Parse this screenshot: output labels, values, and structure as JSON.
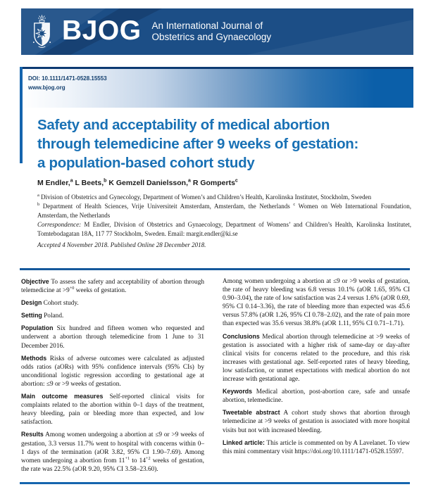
{
  "colors": {
    "band_navy": "#1c4e86",
    "rule_blue": "#1565ae",
    "rule_blue2": "#15599c",
    "title_blue": "#1971b5",
    "doi_border": "#0c3a72",
    "doi_grad_end": "#0b5fa9",
    "doi_text": "#14406f"
  },
  "header": {
    "logo": "BJOG",
    "tagline_line1": "An International Journal of",
    "tagline_line2": "Obstetrics and Gynaecology",
    "crest_icon": "bjog-crest",
    "doi": "DOI: 10.1111/1471-0528.15553",
    "website": "www.bjog.org"
  },
  "article": {
    "title_lines": [
      "Safety and acceptability of medical abortion",
      "through telemedicine after 9 weeks of gestation:",
      "a population-based cohort study"
    ],
    "authors": [
      {
        "segments": [
          {
            "t": "M Endler,"
          },
          {
            "sup": "a"
          },
          {
            "t": " L Beets,"
          },
          {
            "sup": "b"
          },
          {
            "t": " K Gemzell Danielsson,"
          },
          {
            "sup": "a"
          },
          {
            "t": " R Gomperts"
          },
          {
            "sup": "c"
          }
        ]
      }
    ],
    "affiliations": [
      {
        "segments": [
          {
            "sup": "a"
          },
          {
            "t": " Division of Obstetrics and Gynecology, Department of Women’s and Children’s Health, Karolinska Institutet, Stockholm, Sweden"
          }
        ]
      },
      {
        "segments": [
          {
            "sup": "b"
          },
          {
            "t": " Department of Health Sciences, Vrije Universiteit Amsterdam, Amsterdam, the Netherlands "
          },
          {
            "sup": "c"
          },
          {
            "t": " Women on Web International Foundation, Amsterdam, the Netherlands"
          }
        ]
      },
      {
        "segments": [
          {
            "i": "Correspondence:"
          },
          {
            "t": " M Endler, Division of Obstetrics and Gynaecology, Department of Womens’ and Children’s Health, Karolinska Institutet, Tomtebodagatan 18A, 117 77 Stockholm, Sweden. Email: margit.endler@ki.se"
          }
        ]
      }
    ],
    "accepted_note": "Accepted 4 November 2018. Published Online 28 December 2018."
  },
  "abstract": {
    "left": [
      {
        "label": "Objective",
        "segments": [
          {
            "t": "To assess the safety and acceptability of abortion through telemedicine at >9"
          },
          {
            "sup": "+0"
          },
          {
            "t": " weeks of gestation."
          }
        ]
      },
      {
        "label": "Design",
        "segments": [
          {
            "t": "Cohort study."
          }
        ]
      },
      {
        "label": "Setting",
        "segments": [
          {
            "t": "Poland."
          }
        ]
      },
      {
        "label": "Population",
        "segments": [
          {
            "t": "Six hundred and fifteen women who requested and underwent a abortion through telemedicine from 1 June to 31 December 2016."
          }
        ]
      },
      {
        "label": "Methods",
        "segments": [
          {
            "t": "Risks of adverse outcomes were calculated as adjusted odds ratios (aORs) with 95% confidence intervals (95% CIs) by unconditional logistic regression according to gestational age at abortion: ≤9 or >9 weeks of gestation."
          }
        ]
      },
      {
        "label": "Main outcome measures",
        "segments": [
          {
            "t": "Self-reported clinical visits for complaints related to the abortion within 0–1 days of the treatment, heavy bleeding, pain or bleeding more than expected, and low satisfaction."
          }
        ]
      },
      {
        "label": "Results",
        "segments": [
          {
            "t": "Among women undergoing a abortion at ≤9 or >9 weeks of gestation, 3.3 versus 11.7% went to hospital with concerns within 0–1 days of the termination (aOR 3.82, 95% CI 1.90–7.69). Among women undergoing a abortion from 11"
          },
          {
            "sup": "+1"
          },
          {
            "t": " to 14"
          },
          {
            "sup": "+2"
          },
          {
            "t": " weeks of gestation, the rate was 22.5% (aOR 9.20, 95% CI 3.58–23.60)."
          }
        ]
      }
    ],
    "right": [
      {
        "segments": [
          {
            "t": "Among women undergoing a abortion at ≤9 or >9 weeks of gestation, the rate of heavy bleeding was 6.8 versus 10.1% (aOR 1.65, 95% CI 0.90–3.04), the rate of low satisfaction was 2.4 versus 1.6% (aOR 0.69, 95% CI 0.14–3.36), the rate of bleeding more than expected was 45.6 versus 57.8% (aOR 1.26, 95% CI 0.78–2.02), and the rate of pain more than expected was 35.6 versus 38.8% (aOR 1.11, 95% CI 0.71–1.71)."
          }
        ]
      },
      {
        "label": "Conclusions",
        "segments": [
          {
            "t": "Medical abortion through telemedicine at >9 weeks of gestation is associated with a higher risk of same-day or day-after clinical visits for concerns related to the procedure, and this risk increases with gestational age. Self-reported rates of heavy bleeding, low satisfaction, or unmet expectations with medical abortion do not increase with gestational age."
          }
        ]
      },
      {
        "label": "Keywords",
        "segments": [
          {
            "t": "Medical abortion, post-abortion care, safe and unsafe abortion, telemedicine."
          }
        ]
      },
      {
        "label": "Tweetable abstract",
        "segments": [
          {
            "t": "A cohort study shows that abortion through telemedicine at >9 weeks of gestation is associated with more hospital visits but not with increased bleeding."
          }
        ]
      },
      {
        "label": "Linked article:",
        "segments": [
          {
            "t": "This article is commented on by A Lavelanet. To view this mini commentary visit https://doi.org/10.1111/1471-0528.15597."
          }
        ]
      }
    ]
  }
}
